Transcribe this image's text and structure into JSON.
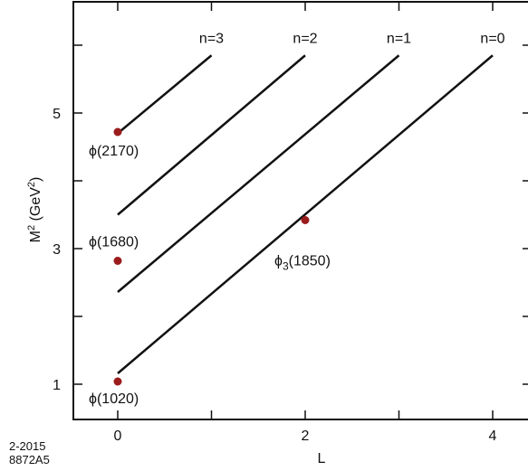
{
  "chart_data": {
    "type": "line",
    "xlabel": "L",
    "ylabel_text": "M",
    "ylabel_unit": "(GeV",
    "x_ticks": [
      "0",
      "2",
      "4"
    ],
    "y_ticks": [
      "1",
      "3",
      "5"
    ],
    "xlim": [
      -0.95,
      4.7
    ],
    "ylim": [
      0.5,
      6.6
    ],
    "series": [
      {
        "name": "n=0",
        "x": [
          0,
          4
        ],
        "y": [
          1.16,
          5.85
        ]
      },
      {
        "name": "n=1",
        "x": [
          0,
          3
        ],
        "y": [
          2.36,
          5.85
        ]
      },
      {
        "name": "n=2",
        "x": [
          0,
          2
        ],
        "y": [
          3.5,
          5.85
        ]
      },
      {
        "name": "n=3",
        "x": [
          0,
          1
        ],
        "y": [
          4.7,
          5.85
        ]
      }
    ],
    "points": [
      {
        "label": "ϕ(1020)",
        "x": 0,
        "y": 1.04
      },
      {
        "label": "ϕ(1680)",
        "x": 0,
        "y": 2.82
      },
      {
        "label": "ϕ(2170)",
        "x": 0,
        "y": 4.72
      },
      {
        "label_main": "ϕ",
        "label_sub": "3",
        "label_rest": "(1850)",
        "x": 2,
        "y": 3.42
      }
    ],
    "colors": {
      "line": "#111111",
      "point": "#9b1c1c"
    }
  },
  "notes": {
    "date": "2-2015",
    "code": "8872A5"
  }
}
